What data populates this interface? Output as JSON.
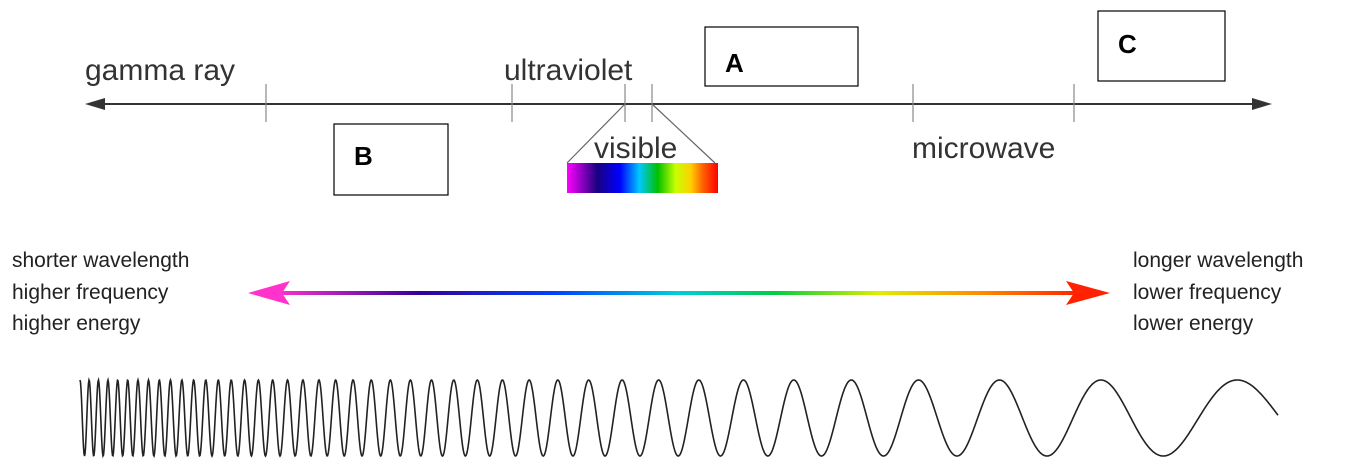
{
  "labels": {
    "gamma_ray": "gamma ray",
    "ultraviolet": "ultraviolet",
    "visible": "visible",
    "microwave": "microwave"
  },
  "boxes": {
    "a": "A",
    "b": "B",
    "c": "C"
  },
  "left_text": [
    "shorter wavelength",
    "higher frequency",
    "higher energy"
  ],
  "right_text": [
    "longer wavelength",
    "lower frequency",
    "lower energy"
  ]
}
